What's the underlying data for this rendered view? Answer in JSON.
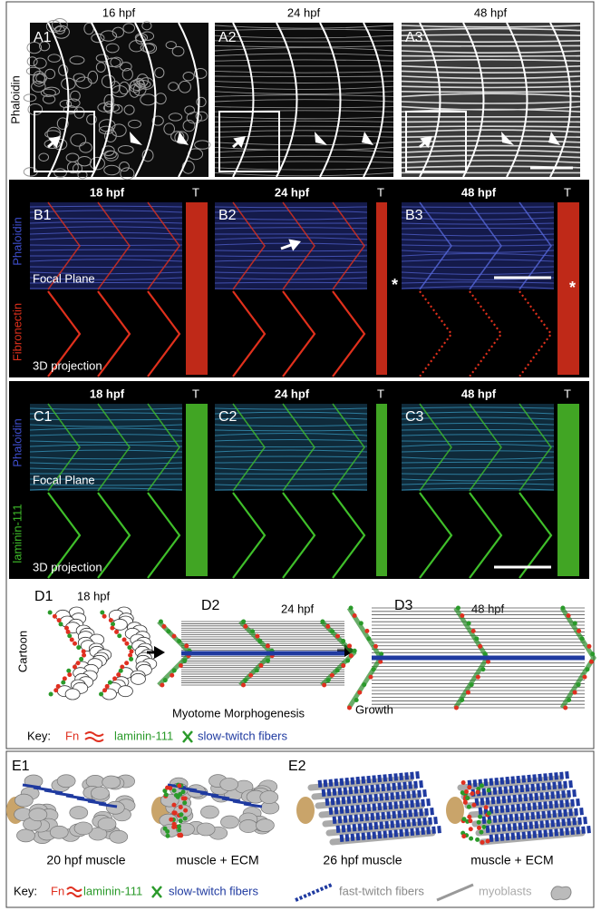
{
  "panel_a": {
    "stain": "Phaloidin",
    "panels": [
      "A1",
      "A2",
      "A3"
    ],
    "times": [
      "16 hpf",
      "24 hpf",
      "48 hpf"
    ]
  },
  "panel_b": {
    "panels": [
      "B1",
      "B2",
      "B3"
    ],
    "times": [
      "18 hpf",
      "24 hpf",
      "48 hpf"
    ],
    "transverse": [
      "T",
      "T",
      "T"
    ],
    "stain_top": "Phaloidin",
    "stain_bottom": "Fibronectin",
    "focal": "Focal Plane",
    "projection": "3D projection",
    "asterisks": [
      "*",
      "*"
    ]
  },
  "panel_c": {
    "panels": [
      "C1",
      "C2",
      "C3"
    ],
    "times": [
      "18 hpf",
      "24 hpf",
      "48 hpf"
    ],
    "transverse": [
      "T",
      "T",
      "T"
    ],
    "stain_top": "Phaloidin",
    "stain_bottom": "laminin-111",
    "focal": "Focal Plane",
    "projection": "3D projection"
  },
  "panel_d": {
    "panels": [
      "D1",
      "D2",
      "D3"
    ],
    "times": [
      "18 hpf",
      "24 hpf",
      "48 hpf"
    ],
    "side_label": "Cartoon",
    "morphogenesis": "Myotome Morphogenesis",
    "growth": "Growth",
    "key": {
      "label": "Key:",
      "fn": "Fn",
      "laminin": "laminin-111",
      "slow": "slow-twitch fibers"
    }
  },
  "panel_e": {
    "panels": [
      "E1",
      "E2"
    ],
    "captions": [
      "20 hpf muscle",
      "muscle + ECM",
      "26 hpf muscle",
      "muscle + ECM"
    ],
    "key": {
      "label": "Key:",
      "fn": "Fn",
      "laminin": "laminin-111",
      "slow": "slow-twitch fibers",
      "fast": "fast-twitch fibers",
      "myoblasts": "myoblasts"
    }
  }
}
